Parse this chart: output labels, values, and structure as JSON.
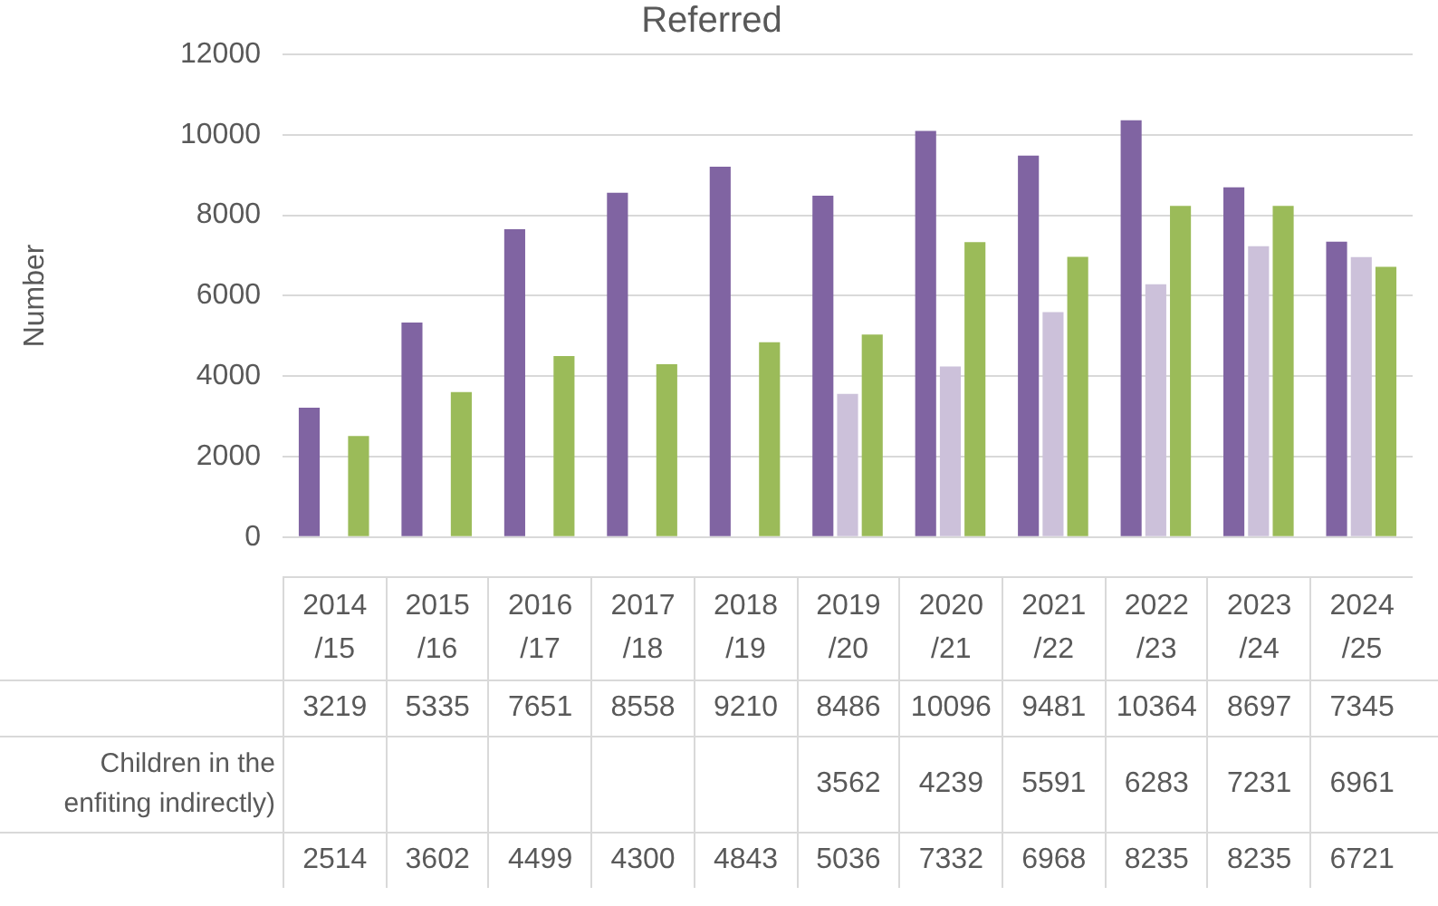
{
  "chart_data": {
    "type": "bar",
    "title": "Referred",
    "ylabel": "Number",
    "categories": [
      "2014/15",
      "2015/16",
      "2016/17",
      "2017/18",
      "2018/19",
      "2019/20",
      "2020/21",
      "2021/22",
      "2022/23",
      "2023/24",
      "2024/25"
    ],
    "series": [
      {
        "color": "#8064a2",
        "values": [
          3219,
          5335,
          7651,
          8558,
          9210,
          8486,
          10096,
          9481,
          10364,
          8697,
          7345
        ]
      },
      {
        "name": "Children in the enfiting indirectly)",
        "color": "#ccc1da",
        "values": [
          null,
          null,
          null,
          null,
          null,
          3562,
          4239,
          5591,
          6283,
          7231,
          6961
        ]
      },
      {
        "color": "#9bbb59",
        "values": [
          2514,
          3602,
          4499,
          4300,
          4843,
          5036,
          7332,
          6968,
          8235,
          8235,
          6721
        ]
      }
    ],
    "ylim": [
      0,
      12000
    ],
    "yticks": [
      0,
      2000,
      4000,
      6000,
      8000,
      10000,
      12000
    ],
    "grid": "y",
    "legend": false,
    "data_labels": true
  }
}
